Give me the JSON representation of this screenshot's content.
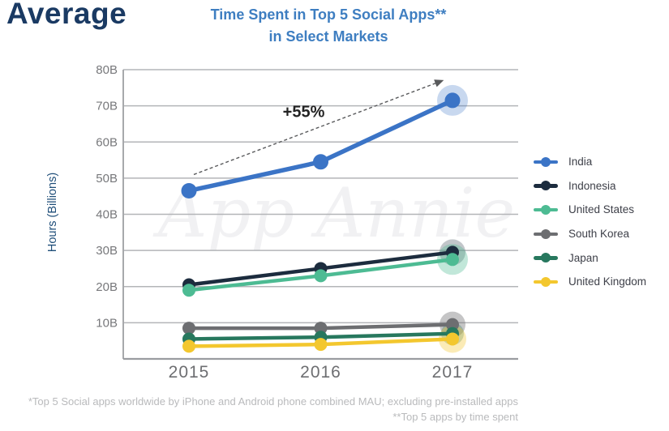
{
  "header": {
    "brand": "Average"
  },
  "chart": {
    "title_line1": "Time Spent in Top 5 Social Apps**",
    "title_line2": "in Select Markets"
  },
  "footnotes": {
    "line1": "*Top 5 Social apps worldwide by iPhone and Android phone combined MAU; excluding pre-installed apps",
    "line2": "**Top 5 apps by time spent"
  },
  "chart_data": {
    "type": "line",
    "title": "Time Spent in Top 5 Social Apps** in Select Markets",
    "xlabel": "",
    "ylabel": "Hours (Billions)",
    "categories": [
      "2015",
      "2016",
      "2017"
    ],
    "series": [
      {
        "name": "India",
        "color": "#3B74C6",
        "values": [
          46.5,
          54.5,
          71.5
        ],
        "halo": "rgba(59,116,198,0.28)",
        "halo_r": 19,
        "line_w": 5.5,
        "dot_r": 9.5
      },
      {
        "name": "Indonesia",
        "color": "#1C2C3E",
        "values": [
          20.5,
          25,
          29.5
        ],
        "halo": "rgba(120,128,138,0.45)",
        "halo_r": 16,
        "line_w": 4.5,
        "dot_r": 8
      },
      {
        "name": "United States",
        "color": "#4DBB93",
        "values": [
          19,
          23,
          27.5
        ],
        "halo": "rgba(77,187,147,0.35)",
        "halo_r": 19,
        "line_w": 4.5,
        "dot_r": 8
      },
      {
        "name": "South Korea",
        "color": "#6D6E71",
        "values": [
          8.5,
          8.5,
          9.5
        ],
        "halo": "rgba(109,110,113,0.40)",
        "halo_r": 16,
        "line_w": 4.5,
        "dot_r": 8
      },
      {
        "name": "Japan",
        "color": "#27785E",
        "values": [
          5.5,
          6,
          7
        ],
        "halo": "rgba(39,120,94,0.30)",
        "halo_r": 14,
        "line_w": 4.5,
        "dot_r": 8
      },
      {
        "name": "United Kingdom",
        "color": "#F3C72E",
        "values": [
          3.5,
          4,
          5.5
        ],
        "halo": "rgba(243,199,46,0.35)",
        "halo_r": 17,
        "line_w": 4.5,
        "dot_r": 8
      }
    ],
    "draw_order": [
      "South Korea",
      "Indonesia",
      "United States",
      "Japan",
      "United Kingdom",
      "India"
    ],
    "ylim": [
      0,
      80
    ],
    "y_ticks": [
      10,
      20,
      30,
      40,
      50,
      60,
      70,
      80
    ],
    "y_tick_suffix": "B",
    "grid": "horizontal",
    "legend_position": "right",
    "annotation": {
      "label": "+55%",
      "from_index": 0,
      "from_value": 51,
      "to_index": 2,
      "to_value": 77
    },
    "watermark": "App Annie",
    "colors": {
      "grid": "#B3B5B8",
      "axis": "#A7A9AC",
      "bottom_axis": "#9A9CA0",
      "y_tick_text": "#77787B",
      "x_tick_text": "#6D6E71",
      "annotation_text": "#232323",
      "arrow": "#58595B",
      "watermark": "#F1F1F3"
    }
  }
}
